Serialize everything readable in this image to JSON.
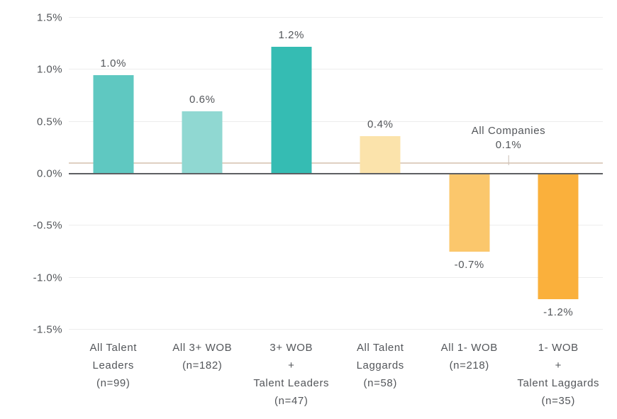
{
  "chart_data": {
    "type": "bar",
    "title": "",
    "xlabel": "",
    "ylabel": "",
    "grid": true,
    "ylim": [
      -1.5,
      1.5
    ],
    "yticks": [
      {
        "value": 1.5,
        "label": "1.5%"
      },
      {
        "value": 1.0,
        "label": "1.0%"
      },
      {
        "value": 0.5,
        "label": "0.5%"
      },
      {
        "value": 0.0,
        "label": "0.0%"
      },
      {
        "value": -0.5,
        "label": "-0.5%"
      },
      {
        "value": -1.0,
        "label": "-1.0%"
      },
      {
        "value": -1.5,
        "label": "-1.5%"
      }
    ],
    "categories": [
      [
        "All Talent",
        "Leaders",
        "(n=99)"
      ],
      [
        "All 3+ WOB",
        "(n=182)"
      ],
      [
        "3+ WOB",
        "+",
        "Talent Leaders",
        "(n=47)"
      ],
      [
        "All Talent",
        "Laggards",
        "(n=58)"
      ],
      [
        "All 1- WOB",
        "(n=218)"
      ],
      [
        "1- WOB",
        "+",
        "Talent Laggards",
        "(n=35)"
      ]
    ],
    "values": [
      1.0,
      0.6,
      1.2,
      0.4,
      -0.7,
      -1.2
    ],
    "value_labels": [
      "1.0%",
      "0.6%",
      "1.2%",
      "0.4%",
      "-0.7%",
      "-1.2%"
    ],
    "plotted_values": [
      0.95,
      0.6,
      1.22,
      0.36,
      -0.75,
      -1.21
    ],
    "bar_colors": [
      "#5FC8C1",
      "#90D8D2",
      "#35BCB3",
      "#FBE3AB",
      "#FBC76C",
      "#FAB03C"
    ],
    "reference_line": {
      "value": 0.1,
      "label_line1": "All Companies",
      "label_line2": "0.1%",
      "color": "#DFD0C2"
    },
    "colors": {
      "text": "#53565A",
      "gridline": "#EDEDED",
      "zero_line": "#5E6063",
      "reference_line": "#DFD0C2",
      "annotation_connector": "#C9BEB4",
      "background": "#FFFFFF"
    }
  }
}
